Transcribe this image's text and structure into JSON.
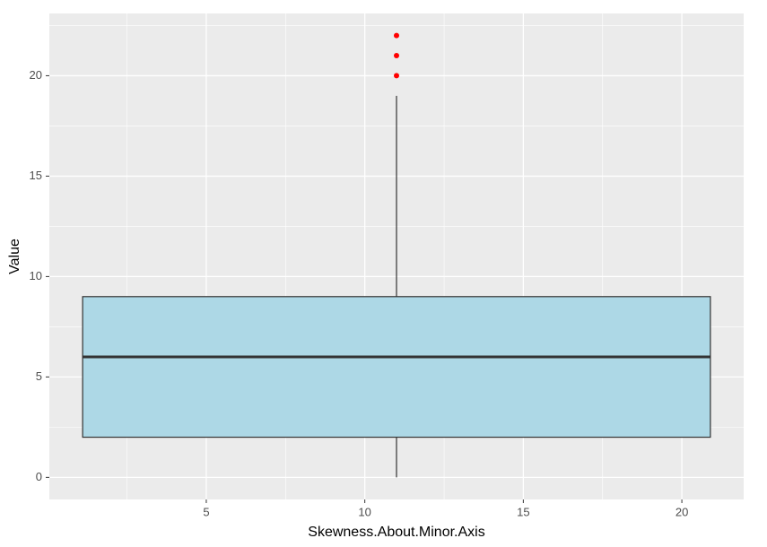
{
  "chart_data": {
    "type": "box",
    "x_label": "Skewness.About.Minor.Axis",
    "y_label": "Value",
    "xlim": [
      0.05,
      21.95
    ],
    "xticks": [
      5,
      10,
      15,
      20
    ],
    "ylim": [
      -1.1,
      23.1
    ],
    "yticks": [
      0,
      5,
      10,
      15,
      20
    ],
    "grid": true,
    "color": "#add8e6",
    "outlier_color": "#ff0000",
    "x_range": [
      1.1,
      20.9
    ],
    "whislo": 0,
    "q1": 2,
    "med": 6,
    "q3": 9,
    "whishi": 19,
    "fliers": [
      20,
      21,
      22
    ]
  }
}
